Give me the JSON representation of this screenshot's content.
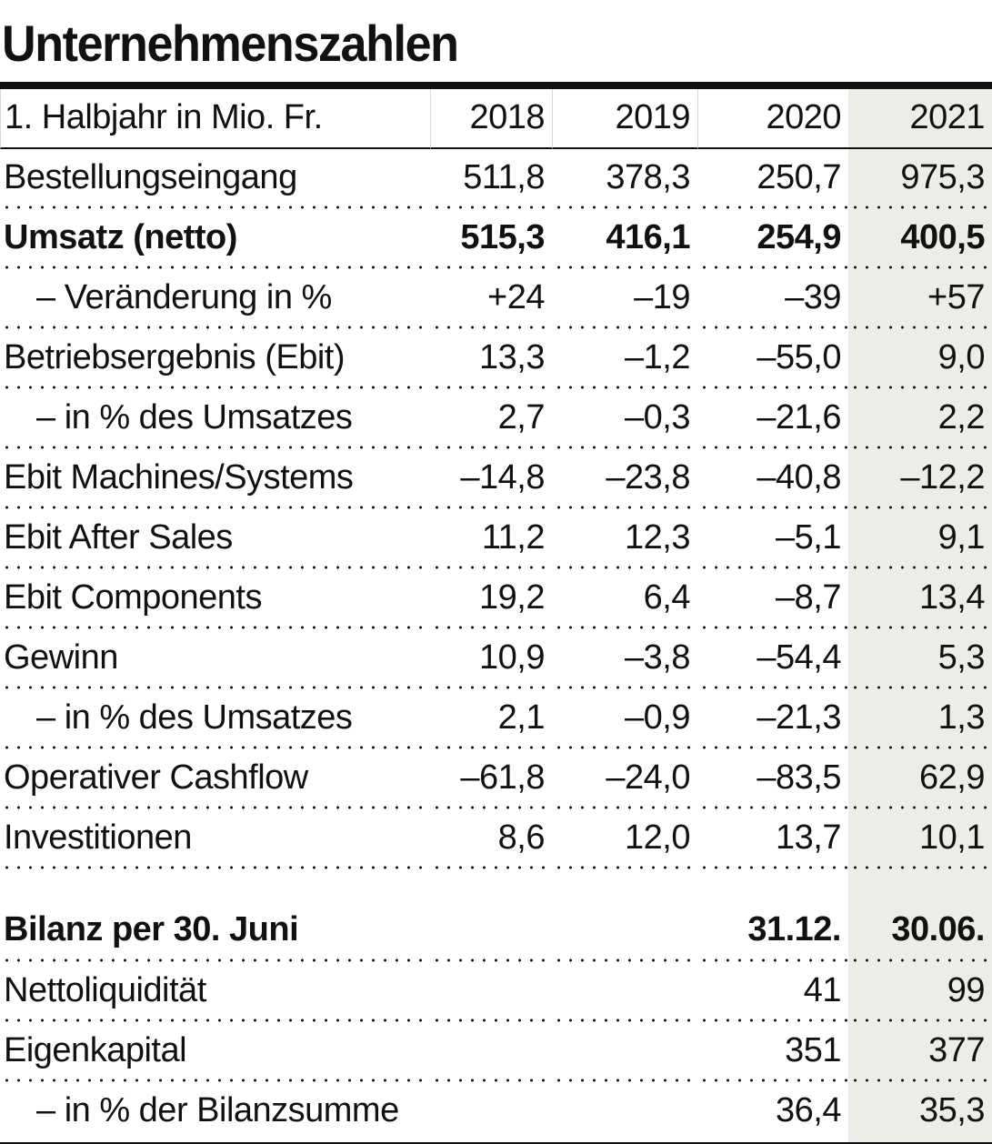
{
  "title": "Unternehmenszahlen",
  "colors": {
    "highlight_column_bg": "#edece6",
    "rule": "#101010",
    "header_separator": "#d9d9d9",
    "text": "#111111"
  },
  "table": {
    "header": {
      "label": "1. Halbjahr in Mio. Fr.",
      "years": [
        "2018",
        "2019",
        "2020",
        "2021"
      ]
    },
    "rows": [
      {
        "label": "Bestellungseingang",
        "values": [
          "511,8",
          "378,3",
          "250,7",
          "975,3"
        ]
      },
      {
        "label": "Umsatz (netto)",
        "values": [
          "515,3",
          "416,1",
          "254,9",
          "400,5"
        ]
      },
      {
        "label": "– Veränderung in %",
        "values": [
          "+24",
          "–19",
          "–39",
          "+57"
        ]
      },
      {
        "label": "Betriebsergebnis (Ebit)",
        "values": [
          "13,3",
          "–1,2",
          "–55,0",
          "9,0"
        ]
      },
      {
        "label": "– in % des Umsatzes",
        "values": [
          "2,7",
          "–0,3",
          "–21,6",
          "2,2"
        ]
      },
      {
        "label": "Ebit Machines/Systems",
        "values": [
          "–14,8",
          "–23,8",
          "–40,8",
          "–12,2"
        ]
      },
      {
        "label": "Ebit After Sales",
        "values": [
          "11,2",
          "12,3",
          "–5,1",
          "9,1"
        ]
      },
      {
        "label": "Ebit Components",
        "values": [
          "19,2",
          "6,4",
          "–8,7",
          "13,4"
        ]
      },
      {
        "label": "Gewinn",
        "values": [
          "10,9",
          "–3,8",
          "–54,4",
          "5,3"
        ]
      },
      {
        "label": "– in % des Umsatzes",
        "values": [
          "2,1",
          "–0,9",
          "–21,3",
          "1,3"
        ]
      },
      {
        "label": "Operativer Cashflow",
        "values": [
          "–61,8",
          "–24,0",
          "–83,5",
          "62,9"
        ]
      },
      {
        "label": "Investitionen",
        "values": [
          "8,6",
          "12,0",
          "13,7",
          "10,1"
        ]
      },
      {
        "label": "Bilanz per 30. Juni",
        "values": [
          "",
          "",
          "31.12.",
          "30.06."
        ]
      },
      {
        "label": "Nettoliquidität",
        "values": [
          "",
          "",
          "41",
          "99"
        ]
      },
      {
        "label": "Eigenkapital",
        "values": [
          "",
          "",
          "351",
          "377"
        ]
      },
      {
        "label": "– in % der Bilanzsumme",
        "values": [
          "",
          "",
          "36,4",
          "35,3"
        ]
      }
    ]
  },
  "chart_data": {
    "type": "table",
    "title": "Unternehmenszahlen",
    "unit_label": "1. Halbjahr in Mio. Fr.",
    "categories": [
      "2018",
      "2019",
      "2020",
      "2021"
    ],
    "series": [
      {
        "name": "Bestellungseingang",
        "values": [
          511.8,
          378.3,
          250.7,
          975.3
        ]
      },
      {
        "name": "Umsatz (netto)",
        "values": [
          515.3,
          416.1,
          254.9,
          400.5
        ],
        "bold": true
      },
      {
        "name": "– Veränderung in %",
        "values": [
          24,
          -19,
          -39,
          57
        ]
      },
      {
        "name": "Betriebsergebnis (Ebit)",
        "values": [
          13.3,
          -1.2,
          -55.0,
          9.0
        ]
      },
      {
        "name": "– in % des Umsatzes",
        "values": [
          2.7,
          -0.3,
          -21.6,
          2.2
        ]
      },
      {
        "name": "Ebit Machines/Systems",
        "values": [
          -14.8,
          -23.8,
          -40.8,
          -12.2
        ]
      },
      {
        "name": "Ebit After Sales",
        "values": [
          11.2,
          12.3,
          -5.1,
          9.1
        ]
      },
      {
        "name": "Ebit Components",
        "values": [
          19.2,
          6.4,
          -8.7,
          13.4
        ]
      },
      {
        "name": "Gewinn",
        "values": [
          10.9,
          -3.8,
          -54.4,
          5.3
        ]
      },
      {
        "name": "– in % des Umsatzes",
        "values": [
          2.1,
          -0.9,
          -21.3,
          1.3
        ]
      },
      {
        "name": "Operativer Cashflow",
        "values": [
          -61.8,
          -24.0,
          -83.5,
          62.9
        ]
      },
      {
        "name": "Investitionen",
        "values": [
          8.6,
          12.0,
          13.7,
          10.1
        ]
      }
    ],
    "balance_section": {
      "label": "Bilanz per 30. Juni",
      "column_labels": [
        "31.12.",
        "30.06."
      ],
      "rows": [
        {
          "name": "Nettoliquidität",
          "values": [
            41,
            99
          ]
        },
        {
          "name": "Eigenkapital",
          "values": [
            351,
            377
          ]
        },
        {
          "name": "– in % der Bilanzsumme",
          "values": [
            36.4,
            35.3
          ]
        }
      ]
    },
    "layout": {
      "highlighted_column": "2021",
      "row_separator": "dotted"
    }
  }
}
